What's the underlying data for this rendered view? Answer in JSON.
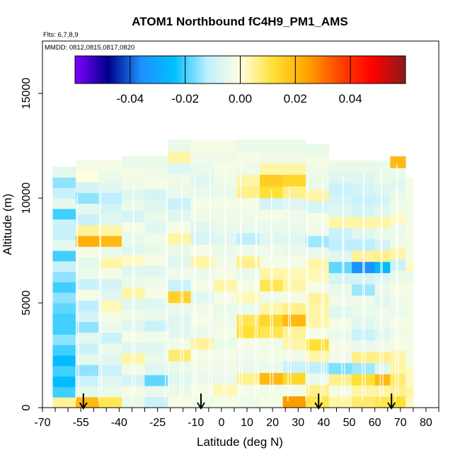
{
  "chart_data": {
    "type": "heatmap",
    "title": "ATOM1 Northbound fC4H9_PM1_AMS",
    "annotations": [
      "Flts: 6,7,8,9",
      "MMDD: 0812,0815,0817,0820"
    ],
    "xlabel": "Latitude (deg N)",
    "ylabel": "Altitude (m)",
    "xlim": [
      -70,
      85
    ],
    "ylim": [
      0,
      17500
    ],
    "x_ticks": [
      -70,
      -55,
      -40,
      -25,
      -10,
      0,
      10,
      20,
      30,
      40,
      50,
      60,
      70,
      80
    ],
    "x_tick_labels": [
      "-70",
      "-55",
      "-40",
      "-25",
      "-10",
      "0",
      "10",
      "20",
      "30",
      "40",
      "50",
      "60",
      "70",
      "80"
    ],
    "y_ticks": [
      0,
      5000,
      10000,
      15000
    ],
    "y_tick_labels": [
      "0",
      "5000",
      "10000",
      "15000"
    ],
    "colorbar": {
      "range": [
        -0.06,
        0.06
      ],
      "ticks": [
        -0.04,
        -0.02,
        0.0,
        0.02,
        0.04
      ],
      "tick_labels": [
        "-0.04",
        "-0.02",
        "0.00",
        "0.02",
        "0.04"
      ],
      "colors": [
        "#7f00ff",
        "#00008b",
        "#1e90ff",
        "#00bfff",
        "#bfefff",
        "#ffffe0",
        "#ffe135",
        "#ffa500",
        "#ff4500",
        "#ff0000",
        "#8b1a1a"
      ]
    },
    "arrow_latitudes": [
      -54,
      -8,
      38,
      66.5
    ],
    "grid": false,
    "legend": "none",
    "columns": [
      {
        "x0": -66,
        "x1": -57,
        "ytop": 11500,
        "values": [
          0.005,
          -0.02,
          -0.025,
          -0.02,
          -0.025,
          -0.02,
          -0.015,
          -0.02,
          -0.02,
          -0.018,
          -0.015,
          -0.02,
          -0.015,
          -0.01,
          -0.02,
          -0.005,
          -0.01,
          -0.01,
          -0.02,
          -0.005,
          -0.01,
          -0.015,
          -0.005
        ]
      },
      {
        "x0": -57,
        "x1": -48,
        "ytop": 11800,
        "values": [
          0.02,
          -0.005,
          -0.01,
          -0.015,
          -0.005,
          -0.01,
          -0.005,
          -0.015,
          -0.008,
          -0.012,
          -0.002,
          -0.01,
          -0.004,
          -0.005,
          -0.002,
          0.022,
          0.005,
          -0.01,
          -0.005,
          -0.015,
          -0.008,
          0.0,
          -0.002
        ]
      },
      {
        "x0": -48,
        "x1": -39,
        "ytop": 11800,
        "values": [
          0.01,
          -0.004,
          -0.006,
          -0.01,
          -0.006,
          -0.004,
          -0.01,
          -0.004,
          -0.002,
          0.003,
          -0.006,
          -0.008,
          -0.002,
          0.004,
          -0.004,
          0.02,
          0.004,
          -0.006,
          -0.008,
          -0.012,
          -0.006,
          -0.004,
          -0.002
        ]
      },
      {
        "x0": -39,
        "x1": -30,
        "ytop": 12000,
        "values": [
          -0.004,
          -0.002,
          -0.008,
          -0.003,
          0.004,
          -0.006,
          -0.002,
          -0.006,
          -0.003,
          -0.006,
          0.004,
          -0.004,
          -0.006,
          0.002,
          -0.006,
          -0.004,
          -0.002,
          -0.008,
          -0.004,
          -0.006,
          -0.003,
          -0.002,
          -0.004
        ]
      },
      {
        "x0": -30,
        "x1": -21,
        "ytop": 12000,
        "values": [
          -0.01,
          -0.004,
          -0.018,
          -0.006,
          -0.004,
          -0.006,
          -0.003,
          -0.01,
          -0.004,
          -0.006,
          -0.002,
          -0.003,
          -0.006,
          -0.002,
          -0.004,
          -0.003,
          -0.006,
          -0.004,
          -0.006,
          -0.008,
          -0.002,
          -0.003,
          -0.004
        ]
      },
      {
        "x0": -21,
        "x1": -12,
        "ytop": 12800,
        "values": [
          -0.002,
          -0.004,
          -0.006,
          -0.004,
          0.008,
          -0.003,
          -0.006,
          -0.006,
          -0.004,
          0.015,
          -0.01,
          -0.003,
          -0.006,
          -0.004,
          0.004,
          -0.002,
          -0.006,
          -0.01,
          -0.004,
          -0.003,
          -0.006,
          0.004,
          -0.004
        ]
      },
      {
        "x0": -12,
        "x1": -3,
        "ytop": 12800,
        "values": [
          -0.003,
          -0.002,
          -0.004,
          -0.003,
          -0.002,
          0.005,
          -0.004,
          -0.002,
          -0.003,
          -0.006,
          -0.002,
          -0.004,
          0.004,
          -0.002,
          -0.008,
          -0.006,
          -0.003,
          -0.002,
          -0.004,
          -0.006,
          -0.004,
          -0.003,
          -0.002
        ]
      },
      {
        "x0": -3,
        "x1": 6,
        "ytop": 12800,
        "values": [
          -0.002,
          0.003,
          -0.004,
          -0.003,
          -0.002,
          -0.004,
          -0.002,
          -0.003,
          -0.004,
          -0.002,
          0.004,
          -0.002,
          -0.003,
          -0.004,
          -0.006,
          -0.004,
          -0.003,
          -0.002,
          -0.004,
          -0.003,
          -0.002,
          -0.003,
          -0.002
        ]
      },
      {
        "x0": 6,
        "x1": 15,
        "ytop": 12800,
        "values": [
          -0.003,
          -0.002,
          0.006,
          -0.004,
          -0.003,
          -0.002,
          0.012,
          0.01,
          -0.004,
          0.003,
          -0.002,
          -0.004,
          0.006,
          -0.003,
          -0.012,
          -0.004,
          -0.003,
          -0.002,
          0.006,
          0.004,
          -0.003,
          -0.002,
          -0.004
        ]
      },
      {
        "x0": 15,
        "x1": 24,
        "ytop": 12800,
        "values": [
          -0.002,
          -0.003,
          0.02,
          -0.004,
          -0.002,
          -0.003,
          0.01,
          0.014,
          0.004,
          -0.003,
          0.01,
          0.004,
          -0.002,
          -0.003,
          -0.006,
          -0.004,
          -0.002,
          -0.008,
          0.012,
          0.016,
          0.004,
          -0.003,
          -0.004
        ]
      },
      {
        "x0": 24,
        "x1": 33,
        "ytop": 12800,
        "values": [
          0.025,
          -0.002,
          0.014,
          -0.01,
          -0.003,
          0.004,
          0.005,
          0.02,
          0.006,
          -0.002,
          0.004,
          0.003,
          -0.002,
          -0.004,
          -0.006,
          -0.004,
          -0.003,
          -0.006,
          0.006,
          0.014,
          0.004,
          -0.003,
          -0.004
        ]
      },
      {
        "x0": 33,
        "x1": 42,
        "ytop": 12600,
        "values": [
          0.01,
          0.006,
          -0.004,
          -0.012,
          0.004,
          0.012,
          -0.002,
          0.004,
          0.004,
          0.005,
          -0.002,
          0.003,
          0.004,
          -0.004,
          -0.014,
          -0.003,
          -0.002,
          -0.008,
          0.004,
          -0.004,
          -0.003,
          -0.002,
          -0.004
        ]
      },
      {
        "x0": 42,
        "x1": 51,
        "ytop": 11800,
        "values": [
          0.004,
          -0.002,
          0.006,
          -0.016,
          -0.003,
          -0.002,
          -0.004,
          -0.002,
          -0.006,
          -0.003,
          -0.004,
          -0.008,
          -0.018,
          -0.006,
          -0.012,
          -0.01,
          0.004,
          -0.006,
          -0.008,
          -0.01,
          -0.006,
          -0.004
        ]
      },
      {
        "x0": 51,
        "x1": 60,
        "ytop": 11800,
        "values": [
          0.008,
          0.004,
          0.012,
          -0.014,
          0.006,
          -0.004,
          -0.01,
          -0.006,
          -0.004,
          -0.003,
          -0.014,
          -0.008,
          -0.035,
          0.005,
          -0.012,
          -0.006,
          0.004,
          -0.008,
          -0.01,
          -0.008,
          -0.006,
          -0.004
        ]
      },
      {
        "x0": 60,
        "x1": 66,
        "ytop": 11800,
        "values": [
          0.01,
          0.004,
          0.02,
          -0.006,
          0.006,
          -0.003,
          -0.006,
          -0.004,
          -0.003,
          -0.006,
          -0.004,
          -0.006,
          -0.025,
          0.006,
          -0.008,
          -0.004,
          0.004,
          -0.006,
          -0.008,
          -0.006,
          -0.004,
          -0.004
        ]
      },
      {
        "x0": 66,
        "x1": 72,
        "ytop": 12000,
        "values": [
          0.012,
          0.006,
          0.008,
          0.004,
          0.004,
          -0.002,
          -0.003,
          -0.002,
          -0.004,
          -0.003,
          -0.002,
          -0.004,
          -0.01,
          0.004,
          -0.003,
          -0.004,
          0.002,
          -0.003,
          -0.004,
          -0.006,
          -0.004,
          0.02
        ]
      },
      {
        "x0": 72,
        "x1": 75,
        "ytop": 11000,
        "values": [
          0.002,
          0.004,
          0.002,
          0.002,
          -0.002,
          -0.002,
          -0.003,
          -0.002,
          -0.002,
          -0.003,
          -0.002,
          -0.002,
          -0.004,
          0.002,
          -0.002,
          -0.003,
          -0.002,
          -0.002,
          -0.003,
          -0.003,
          -0.002,
          -0.002
        ]
      }
    ]
  }
}
